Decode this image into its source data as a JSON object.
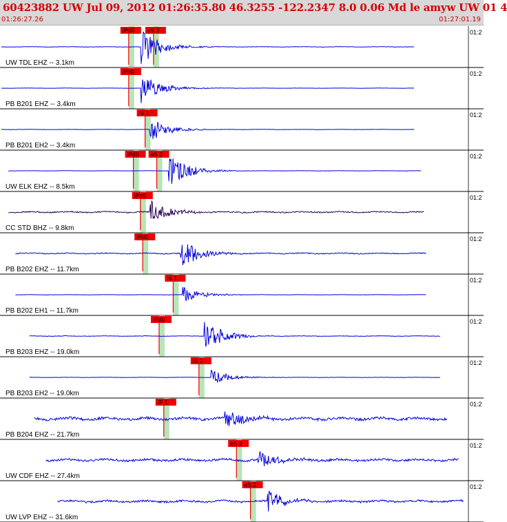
{
  "header": {
    "title": "60423882  UW Jul 09, 2012 01:26:35.80    46.3255  -122.2347   8.0  0.06  Md  le  amyw UW 01    4",
    "start_time": "01:26:27.26",
    "end_time": "01:27:01.19",
    "time_tick_label": "01:2"
  },
  "colors": {
    "header_bg": "#d8d8d8",
    "header_text": "#d40000",
    "trace": "#0000dd",
    "trace_dark": "#2a0050",
    "pick": "#ee0000",
    "pick_window": "#b8e4b8",
    "panel_border": "#000000"
  },
  "panels": [
    {
      "label": "UW TDL EHZ -- 3.1km",
      "color": "#0000dd",
      "noise": 0.1,
      "start": 0.0,
      "end": 0.885,
      "onset": 0.3,
      "amp": 0.85,
      "picks": [
        {
          "text": "iPd0",
          "pos": 0.26
        },
        {
          "text": "eS 2",
          "pos": 0.313
        }
      ]
    },
    {
      "label": "PB B201 EHZ -- 3.4km",
      "color": "#0000dd",
      "noise": 0.05,
      "start": 0.0,
      "end": 0.885,
      "onset": 0.3,
      "amp": 0.7,
      "picks": [
        {
          "text": "iPd0",
          "pos": 0.26
        }
      ]
    },
    {
      "label": "PB B201 EH2 -- 3.4km",
      "color": "#0000dd",
      "noise": 0.05,
      "start": 0.0,
      "end": 0.885,
      "onset": 0.32,
      "amp": 0.55,
      "picks": [
        {
          "text": "iS 1",
          "pos": 0.295
        }
      ]
    },
    {
      "label": "UW ELK EHZ -- 8.5km",
      "color": "#0000dd",
      "noise": 0.05,
      "start": 0.015,
      "end": 0.9,
      "onset": 0.36,
      "amp": 0.8,
      "picks": [
        {
          "text": "iPd0",
          "pos": 0.27
        },
        {
          "text": "eS 2",
          "pos": 0.32
        }
      ]
    },
    {
      "label": "CC STD BHZ -- 9.8km",
      "color": "#2a0050",
      "noise": 0.28,
      "start": 0.015,
      "end": 0.905,
      "onset": 0.32,
      "amp": 0.55,
      "picks": [
        {
          "text": "iPd0",
          "pos": 0.285
        }
      ]
    },
    {
      "label": "PB B202 EHZ -- 11.7km",
      "color": "#0000dd",
      "noise": 0.22,
      "start": 0.03,
      "end": 0.91,
      "onset": 0.385,
      "amp": 0.7,
      "picks": [
        {
          "text": "iPd0",
          "pos": 0.29
        }
      ]
    },
    {
      "label": "PB B202 EH1 -- 11.7km",
      "color": "#0000dd",
      "noise": 0.05,
      "start": 0.03,
      "end": 0.91,
      "onset": 0.39,
      "amp": 0.35,
      "picks": [
        {
          "text": "iS 1",
          "pos": 0.355
        }
      ]
    },
    {
      "label": "PB B203 EHZ -- 19.0km",
      "color": "#0000dd",
      "noise": 0.12,
      "start": 0.06,
      "end": 0.94,
      "onset": 0.435,
      "amp": 0.75,
      "picks": [
        {
          "text": "iPd0",
          "pos": 0.325
        }
      ]
    },
    {
      "label": "PB B203 EH2 -- 19.0km",
      "color": "#0000dd",
      "noise": 0.06,
      "start": 0.06,
      "end": 0.94,
      "onset": 0.45,
      "amp": 0.35,
      "picks": [
        {
          "text": "iS 1",
          "pos": 0.41
        }
      ]
    },
    {
      "label": "PB B204 EHZ -- 21.7km",
      "color": "#0000dd",
      "noise": 0.6,
      "start": 0.07,
      "end": 0.955,
      "onset": 0.48,
      "amp": 0.45,
      "picks": [
        {
          "text": "iP 1",
          "pos": 0.335
        }
      ]
    },
    {
      "label": "UW CDF EHZ -- 27.4km",
      "color": "#0000dd",
      "noise": 0.5,
      "start": 0.095,
      "end": 0.98,
      "onset": 0.55,
      "amp": 0.5,
      "picks": [
        {
          "text": "eS 2",
          "pos": 0.49
        }
      ]
    },
    {
      "label": "UW LVP EHZ -- 31.6km",
      "color": "#0000dd",
      "noise": 0.45,
      "start": 0.12,
      "end": 0.99,
      "onset": 0.57,
      "amp": 0.55,
      "picks": [
        {
          "text": "eS 2",
          "pos": 0.52
        }
      ]
    }
  ]
}
